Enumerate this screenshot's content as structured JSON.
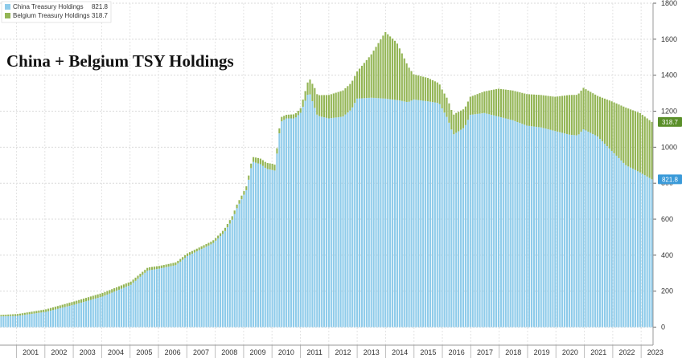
{
  "chart_data": {
    "type": "bar",
    "title": "China + Belgium TSY Holdings",
    "stacked": true,
    "ylim": [
      -100,
      1800
    ],
    "y_ticks": [
      0,
      200,
      400,
      600,
      800,
      1000,
      1200,
      1400,
      1600,
      1800
    ],
    "y_axis_side": "right",
    "x_tick_labels": [
      "2001",
      "2002",
      "2003",
      "2004",
      "2005",
      "2006",
      "2007",
      "2008",
      "2009",
      "2010",
      "2011",
      "2012",
      "2013",
      "2014",
      "2015",
      "2016",
      "2017",
      "2018",
      "2019",
      "2020",
      "2021",
      "2022",
      "2023"
    ],
    "grid": true,
    "legend_placement": "top-left",
    "legend": [
      {
        "name": "China Treasury Holdings",
        "value": "821.8",
        "color": "#8ecbea"
      },
      {
        "name": "Belgium Treasury Holdings",
        "value": "318.7",
        "color": "#93b555"
      }
    ],
    "last_value_tags": [
      {
        "value": "318.7",
        "series": "Belgium Treasury Holdings",
        "color": "#5a8f29"
      },
      {
        "value": "821.8",
        "series": "China Treasury Holdings",
        "color": "#3a9ad9"
      }
    ],
    "x_start_year": 2000.42,
    "x_end_year": 2023.42,
    "series": [
      {
        "name": "China Treasury Holdings",
        "anchors": [
          [
            2000.42,
            60
          ],
          [
            2001.0,
            63
          ],
          [
            2002.0,
            85
          ],
          [
            2003.0,
            125
          ],
          [
            2004.0,
            170
          ],
          [
            2005.0,
            235
          ],
          [
            2005.6,
            315
          ],
          [
            2006.0,
            325
          ],
          [
            2006.6,
            345
          ],
          [
            2007.0,
            395
          ],
          [
            2007.9,
            465
          ],
          [
            2008.3,
            525
          ],
          [
            2008.6,
            600
          ],
          [
            2008.75,
            660
          ],
          [
            2009.1,
            765
          ],
          [
            2009.3,
            920
          ],
          [
            2009.6,
            905
          ],
          [
            2009.8,
            880
          ],
          [
            2010.1,
            870
          ],
          [
            2010.3,
            1140
          ],
          [
            2010.5,
            1160
          ],
          [
            2010.8,
            1160
          ],
          [
            2011.0,
            1190
          ],
          [
            2011.3,
            1310
          ],
          [
            2011.6,
            1175
          ],
          [
            2012.0,
            1160
          ],
          [
            2012.5,
            1170
          ],
          [
            2012.8,
            1210
          ],
          [
            2013.0,
            1270
          ],
          [
            2013.5,
            1275
          ],
          [
            2014.0,
            1270
          ],
          [
            2014.5,
            1260
          ],
          [
            2014.8,
            1250
          ],
          [
            2015.0,
            1265
          ],
          [
            2015.5,
            1255
          ],
          [
            2015.9,
            1245
          ],
          [
            2016.2,
            1160
          ],
          [
            2016.4,
            1070
          ],
          [
            2016.8,
            1110
          ],
          [
            2017.0,
            1180
          ],
          [
            2017.5,
            1190
          ],
          [
            2018.0,
            1170
          ],
          [
            2018.5,
            1150
          ],
          [
            2019.0,
            1120
          ],
          [
            2019.5,
            1110
          ],
          [
            2020.0,
            1090
          ],
          [
            2020.5,
            1070
          ],
          [
            2020.8,
            1065
          ],
          [
            2021.0,
            1100
          ],
          [
            2021.5,
            1060
          ],
          [
            2022.0,
            980
          ],
          [
            2022.5,
            900
          ],
          [
            2023.0,
            860
          ],
          [
            2023.42,
            821.8
          ]
        ]
      },
      {
        "name": "Belgium Treasury Holdings",
        "anchors": [
          [
            2000.42,
            8
          ],
          [
            2001.0,
            10
          ],
          [
            2002.0,
            14
          ],
          [
            2003.0,
            18
          ],
          [
            2004.0,
            20
          ],
          [
            2005.0,
            18
          ],
          [
            2006.0,
            15
          ],
          [
            2007.0,
            15
          ],
          [
            2008.0,
            15
          ],
          [
            2008.6,
            20
          ],
          [
            2009.0,
            20
          ],
          [
            2009.5,
            30
          ],
          [
            2010.0,
            35
          ],
          [
            2010.5,
            20
          ],
          [
            2011.0,
            25
          ],
          [
            2011.5,
            110
          ],
          [
            2012.0,
            130
          ],
          [
            2012.5,
            145
          ],
          [
            2013.0,
            150
          ],
          [
            2013.5,
            240
          ],
          [
            2014.0,
            370
          ],
          [
            2014.4,
            320
          ],
          [
            2015.0,
            140
          ],
          [
            2015.5,
            130
          ],
          [
            2016.0,
            105
          ],
          [
            2016.5,
            110
          ],
          [
            2017.0,
            100
          ],
          [
            2017.5,
            120
          ],
          [
            2018.0,
            155
          ],
          [
            2018.5,
            165
          ],
          [
            2019.0,
            175
          ],
          [
            2019.5,
            180
          ],
          [
            2020.0,
            190
          ],
          [
            2020.5,
            220
          ],
          [
            2021.0,
            230
          ],
          [
            2021.5,
            225
          ],
          [
            2022.0,
            275
          ],
          [
            2022.5,
            320
          ],
          [
            2023.0,
            330
          ],
          [
            2023.42,
            318.7
          ]
        ]
      }
    ]
  }
}
